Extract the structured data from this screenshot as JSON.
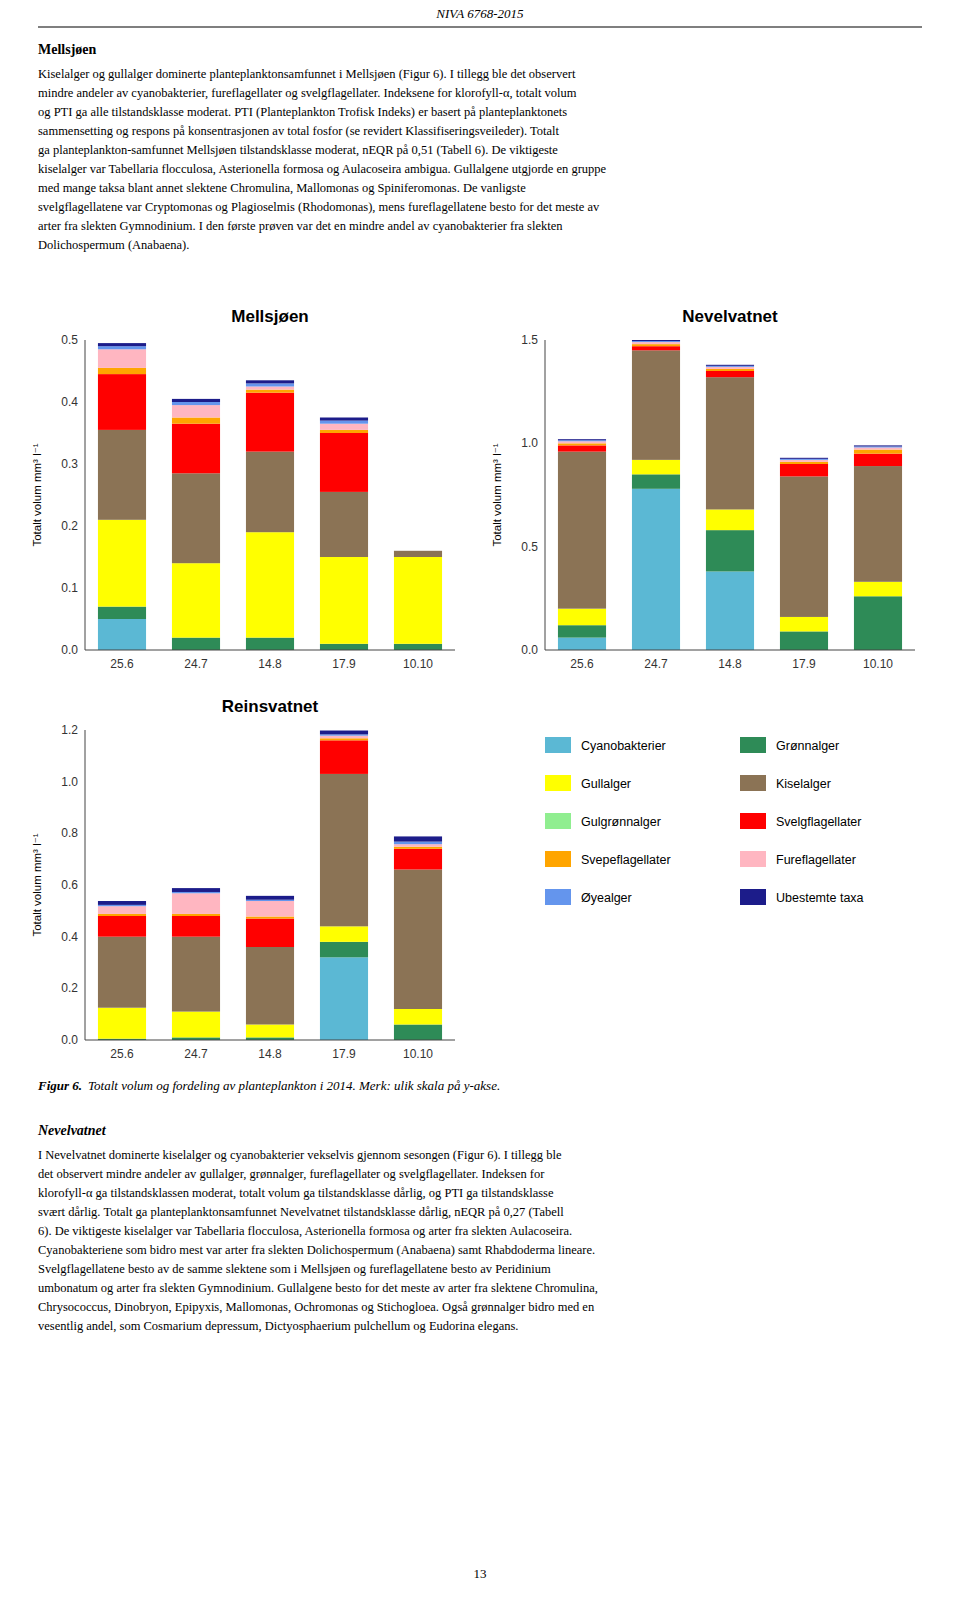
{
  "header": "NIVA 6768-2015",
  "heading_1": "Mellsjøen",
  "body_1": [
    "Kiselalger og gullalger dominerte planteplanktonsamfunnet i Mellsjøen (Figur 6). I tillegg ble det observert",
    "mindre andeler av cyanobakterier, fureflagellater og svelgflagellater. Indeksene for klorofyll-α, totalt volum",
    "og PTI ga alle tilstandsklasse moderat. PTI (Planteplankton Trofisk Indeks) er basert på planteplanktonets",
    "sammensetting og respons på konsentrasjonen av total fosfor (se revidert Klassifiseringsveileder). Totalt",
    "ga planteplankton-samfunnet Mellsjøen tilstandsklasse moderat, nEQR på 0,51 (Tabell 6). De viktigeste",
    "kiselalger var Tabellaria flocculosa, Asterionella formosa og Aulacoseira ambigua. Gullalgene utgjorde en gruppe",
    "med mange taksa blant annet slektene Chromulina, Mallomonas og Spiniferomonas. De vanligste",
    "svelgflagellatene var Cryptomonas og Plagioselmis (Rhodomonas), mens fureflagellatene besto for det meste av",
    "arter fra slekten Gymnodinium. I den første prøven var det en mindre andel av cyanobakterier fra slekten",
    "Dolichospermum (Anabaena)."
  ],
  "chart_data": [
    {
      "type": "bar",
      "stacked": true,
      "grid": false,
      "title": "Mellsjøen",
      "ylabel": "Totalt volum mm³ l⁻¹",
      "categories": [
        "25.6",
        "24.7",
        "14.8",
        "17.9",
        "10.10"
      ],
      "ylim": [
        0,
        0.5
      ],
      "yticks": [
        {
          "value": 0,
          "label": "0.0"
        },
        0.1,
        0.2,
        0.3,
        0.4,
        0.5
      ],
      "series": [
        {
          "name": "Cyanobakterier",
          "color": "#5BB8D4",
          "values": [
            0.05,
            0.0,
            0.0,
            0.0,
            0.0
          ]
        },
        {
          "name": "Grønnalger",
          "color": "#2E8B57",
          "values": [
            0.02,
            0.02,
            0.02,
            0.01,
            0.01
          ]
        },
        {
          "name": "Gullalger",
          "color": "#FFFF00",
          "values": [
            0.14,
            0.12,
            0.17,
            0.14,
            0.14
          ]
        },
        {
          "name": "Kiselalger",
          "color": "#8B7355",
          "values": [
            0.145,
            0.145,
            0.13,
            0.105,
            0.01
          ]
        },
        {
          "name": "Gulgrønnalger",
          "color": "#90EE90",
          "values": [
            0.0,
            0.0,
            0.0,
            0.0,
            0.0
          ]
        },
        {
          "name": "Svelgflagellater",
          "color": "#FF0000",
          "values": [
            0.09,
            0.08,
            0.095,
            0.095,
            0.0
          ]
        },
        {
          "name": "Svepeflagellater",
          "color": "#FFA500",
          "values": [
            0.01,
            0.01,
            0.005,
            0.005,
            0.0
          ]
        },
        {
          "name": "Fureflagellater",
          "color": "#FFB6C1",
          "values": [
            0.03,
            0.02,
            0.005,
            0.01,
            0.0
          ]
        },
        {
          "name": "Øyealger",
          "color": "#6495ED",
          "values": [
            0.005,
            0.005,
            0.005,
            0.005,
            0.0
          ]
        },
        {
          "name": "Ubestemte taxa",
          "color": "#1C1C8A",
          "values": [
            0.005,
            0.005,
            0.005,
            0.005,
            0.0
          ]
        }
      ]
    },
    {
      "type": "bar",
      "stacked": true,
      "grid": false,
      "title": "Nevelvatnet",
      "ylabel": "Totalt volum mm³ l⁻¹",
      "categories": [
        "25.6",
        "24.7",
        "14.8",
        "17.9",
        "10.10"
      ],
      "ylim": [
        0,
        1.5
      ],
      "yticks": [
        {
          "value": 0,
          "label": "0.0"
        },
        0.5,
        {
          "value": 1,
          "label": "1.0"
        },
        1.5
      ],
      "series": [
        {
          "name": "Cyanobakterier",
          "color": "#5BB8D4",
          "values": [
            0.06,
            0.78,
            0.38,
            0.0,
            0.0
          ]
        },
        {
          "name": "Grønnalger",
          "color": "#2E8B57",
          "values": [
            0.06,
            0.07,
            0.2,
            0.09,
            0.26
          ]
        },
        {
          "name": "Gullalger",
          "color": "#FFFF00",
          "values": [
            0.08,
            0.07,
            0.1,
            0.07,
            0.07
          ]
        },
        {
          "name": "Kiselalger",
          "color": "#8B7355",
          "values": [
            0.76,
            0.53,
            0.64,
            0.68,
            0.56
          ]
        },
        {
          "name": "Gulgrønnalger",
          "color": "#90EE90",
          "values": [
            0.0,
            0.0,
            0.0,
            0.0,
            0.0
          ]
        },
        {
          "name": "Svelgflagellater",
          "color": "#FF0000",
          "values": [
            0.03,
            0.02,
            0.03,
            0.06,
            0.06
          ]
        },
        {
          "name": "Svepeflagellater",
          "color": "#FFA500",
          "values": [
            0.01,
            0.01,
            0.01,
            0.01,
            0.02
          ]
        },
        {
          "name": "Fureflagellater",
          "color": "#FFB6C1",
          "values": [
            0.01,
            0.01,
            0.01,
            0.01,
            0.01
          ]
        },
        {
          "name": "Øyealger",
          "color": "#6495ED",
          "values": [
            0.005,
            0.005,
            0.005,
            0.005,
            0.005
          ]
        },
        {
          "name": "Ubestemte taxa",
          "color": "#1C1C8A",
          "values": [
            0.005,
            0.005,
            0.005,
            0.005,
            0.005
          ]
        }
      ]
    },
    {
      "type": "bar",
      "stacked": true,
      "grid": false,
      "title": "Reinsvatnet",
      "ylabel": "Totalt volum mm³ l⁻¹",
      "categories": [
        "25.6",
        "24.7",
        "14.8",
        "17.9",
        "10.10"
      ],
      "ylim": [
        0,
        1.2
      ],
      "yticks": [
        {
          "value": 0,
          "label": "0.0"
        },
        0.2,
        0.4,
        0.6,
        0.8,
        {
          "value": 1,
          "label": "1.0"
        },
        1.2
      ],
      "series": [
        {
          "name": "Cyanobakterier",
          "color": "#5BB8D4",
          "values": [
            0.0,
            0.0,
            0.0,
            0.32,
            0.0
          ]
        },
        {
          "name": "Grønnalger",
          "color": "#2E8B57",
          "values": [
            0.005,
            0.01,
            0.01,
            0.06,
            0.06
          ]
        },
        {
          "name": "Gullalger",
          "color": "#FFFF00",
          "values": [
            0.12,
            0.1,
            0.05,
            0.06,
            0.06
          ]
        },
        {
          "name": "Kiselalger",
          "color": "#8B7355",
          "values": [
            0.275,
            0.29,
            0.3,
            0.59,
            0.54
          ]
        },
        {
          "name": "Gulgrønnalger",
          "color": "#90EE90",
          "values": [
            0.0,
            0.0,
            0.0,
            0.0,
            0.0
          ]
        },
        {
          "name": "Svelgflagellater",
          "color": "#FF0000",
          "values": [
            0.08,
            0.08,
            0.11,
            0.13,
            0.08
          ]
        },
        {
          "name": "Svepeflagellater",
          "color": "#FFA500",
          "values": [
            0.008,
            0.008,
            0.008,
            0.008,
            0.008
          ]
        },
        {
          "name": "Fureflagellater",
          "color": "#FFB6C1",
          "values": [
            0.03,
            0.08,
            0.06,
            0.01,
            0.01
          ]
        },
        {
          "name": "Øyealger",
          "color": "#6495ED",
          "values": [
            0.005,
            0.005,
            0.005,
            0.005,
            0.01
          ]
        },
        {
          "name": "Ubestemte taxa",
          "color": "#1C1C8A",
          "values": [
            0.015,
            0.015,
            0.015,
            0.015,
            0.02
          ]
        }
      ]
    }
  ],
  "caption_label": "Figur 6.",
  "caption_text": "Totalt volum og fordeling av planteplankton i 2014. Merk: ulik skala på y-akse.",
  "heading_2": "Nevelvatnet",
  "body_2": [
    "I Nevelvatnet dominerte kiselalger og cyanobakterier vekselvis gjennom sesongen (Figur 6). I tillegg ble",
    "det observert mindre andeler av gullalger, grønnalger, fureflagellater og svelgflagellater. Indeksen for",
    "klorofyll-α ga tilstandsklassen moderat, totalt volum ga tilstandsklasse dårlig, og PTI ga tilstandsklasse",
    "svært dårlig. Totalt ga planteplanktonsamfunnet Nevelvatnet tilstandsklasse dårlig, nEQR på 0,27 (Tabell",
    "6). De viktigeste kiselalger var Tabellaria flocculosa, Asterionella formosa og arter fra slekten Aulacoseira.",
    "Cyanobakteriene som bidro mest var arter fra slekten Dolichospermum (Anabaena) samt Rhabdoderma lineare.",
    "Svelgflagellatene besto av de samme slektene som i Mellsjøen og fureflagellatene besto av Peridinium",
    "umbonatum og arter fra slekten Gymnodinium. Gullalgene besto for det meste av arter fra slektene Chromulina,",
    "Chrysococcus, Dinobryon, Epipyxis, Mallomonas, Ochromonas og Stichogloea. Også grønnalger bidro med en",
    "vesentlig andel, som Cosmarium depressum, Dictyosphaerium pulchellum og Eudorina elegans."
  ],
  "page_number": "13"
}
